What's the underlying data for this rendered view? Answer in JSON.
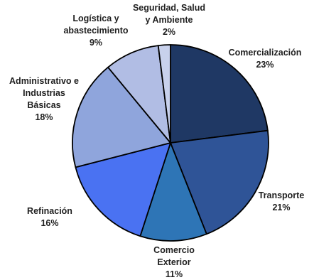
{
  "chart_data": {
    "type": "pie",
    "title": "",
    "slices": [
      {
        "label_lines": [
          "Comercialización"
        ],
        "value": 23,
        "value_label": "23%",
        "color": "#1f3864"
      },
      {
        "label_lines": [
          "Transporte"
        ],
        "value": 21,
        "value_label": "21%",
        "color": "#2f5497"
      },
      {
        "label_lines": [
          "Comercio",
          "Exterior"
        ],
        "value": 11,
        "value_label": "11%",
        "color": "#2e75b6"
      },
      {
        "label_lines": [
          "Refinación"
        ],
        "value": 16,
        "value_label": "16%",
        "color": "#4a72f2"
      },
      {
        "label_lines": [
          "Administrativo e",
          "Industrias",
          "Básicas"
        ],
        "value": 18,
        "value_label": "18%",
        "color": "#8fa5dc"
      },
      {
        "label_lines": [
          "Logística y",
          "abastecimiento"
        ],
        "value": 9,
        "value_label": "9%",
        "color": "#b1bde4"
      },
      {
        "label_lines": [
          "Seguridad, Salud",
          "y Ambiente"
        ],
        "value": 2,
        "value_label": "2%",
        "color": "#c8d1ec"
      }
    ]
  }
}
